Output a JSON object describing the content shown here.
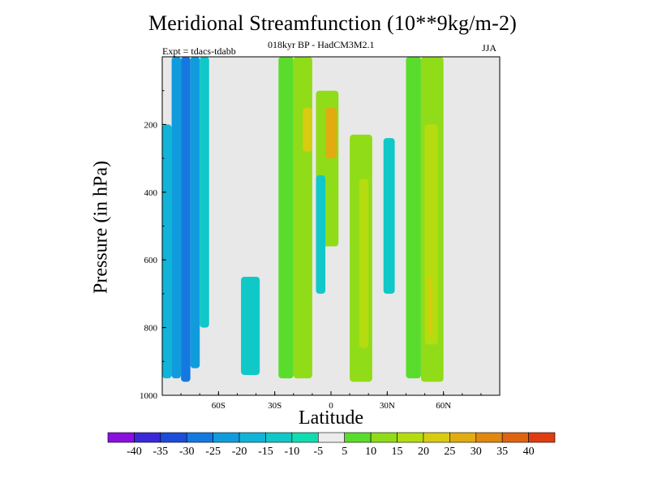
{
  "chart_data": {
    "type": "heatmap",
    "title": "Meridional Streamfunction (10**9kg/m-2)",
    "subtitle": "018kyr BP - HadCM3M2.1",
    "left_string": "Expt = tdacs-tdabb",
    "right_string": "JJA",
    "xlabel": "Latitude",
    "ylabel": "Pressure (in hPa)",
    "xlim": [
      -90,
      90
    ],
    "ylim": [
      1000,
      0
    ],
    "xticks": [
      -60,
      -30,
      0,
      30,
      60
    ],
    "xtick_labels": [
      "60S",
      "30S",
      "0",
      "30N",
      "60N"
    ],
    "yticks": [
      200,
      400,
      600,
      800,
      1000
    ],
    "ytick_labels": [
      "200",
      "400",
      "600",
      "800",
      "1000"
    ],
    "colorbar": {
      "labels": [
        "-40",
        "-35",
        "-30",
        "-25",
        "-20",
        "-15",
        "-10",
        "-5",
        "5",
        "10",
        "15",
        "20",
        "25",
        "30",
        "35",
        "40"
      ],
      "colors": [
        "#8a10e0",
        "#3a28d8",
        "#1c4cd8",
        "#1478e0",
        "#109cdc",
        "#10b4d8",
        "#10c8c8",
        "#10dcb0",
        "#ececec",
        "#5adc2c",
        "#90dc18",
        "#b4dc10",
        "#d8cc10",
        "#e0ac10",
        "#e08810",
        "#e06410",
        "#e03c10"
      ]
    },
    "background_color": "#e8e8e8",
    "cells": [
      {
        "lat": [
          -90,
          -85
        ],
        "p": [
          950,
          200
        ],
        "level": -15
      },
      {
        "lat": [
          -85,
          -80
        ],
        "p": [
          950,
          0
        ],
        "level": -20
      },
      {
        "lat": [
          -80,
          -75
        ],
        "p": [
          960,
          0
        ],
        "level": -25
      },
      {
        "lat": [
          -75,
          -70
        ],
        "p": [
          920,
          0
        ],
        "level": -20
      },
      {
        "lat": [
          -70,
          -65
        ],
        "p": [
          800,
          0
        ],
        "level": -10
      },
      {
        "lat": [
          -48,
          -38
        ],
        "p": [
          940,
          650
        ],
        "level": -10
      },
      {
        "lat": [
          -28,
          -20
        ],
        "p": [
          950,
          0
        ],
        "level": 5
      },
      {
        "lat": [
          -20,
          -10
        ],
        "p": [
          950,
          0
        ],
        "level": 10
      },
      {
        "lat": [
          -15,
          -10
        ],
        "p": [
          280,
          150
        ],
        "level": 20
      },
      {
        "lat": [
          -8,
          4
        ],
        "p": [
          560,
          100
        ],
        "level": 10
      },
      {
        "lat": [
          -3,
          3
        ],
        "p": [
          300,
          150
        ],
        "level": 25
      },
      {
        "lat": [
          -8,
          -3
        ],
        "p": [
          700,
          350
        ],
        "level": -10
      },
      {
        "lat": [
          10,
          22
        ],
        "p": [
          960,
          230
        ],
        "level": 10
      },
      {
        "lat": [
          15,
          20
        ],
        "p": [
          860,
          360
        ],
        "level": 15
      },
      {
        "lat": [
          28,
          34
        ],
        "p": [
          700,
          240
        ],
        "level": -10
      },
      {
        "lat": [
          40,
          48
        ],
        "p": [
          950,
          0
        ],
        "level": 5
      },
      {
        "lat": [
          48,
          60
        ],
        "p": [
          960,
          0
        ],
        "level": 10
      },
      {
        "lat": [
          50,
          57
        ],
        "p": [
          850,
          200
        ],
        "level": 15
      },
      {
        "lat": [
          52,
          54
        ],
        "p": [
          820,
          650
        ],
        "level": 20
      }
    ]
  }
}
